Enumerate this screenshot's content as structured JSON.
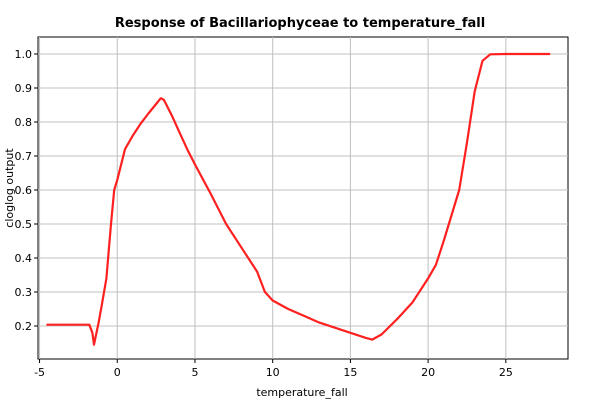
{
  "chart_data": {
    "type": "line",
    "title": "Response of Bacillariophyceae to temperature_fall",
    "xlabel": "temperature_fall",
    "ylabel": "cloglog output",
    "xlim": [
      -5.1,
      29.0
    ],
    "ylim": [
      0.103,
      1.05
    ],
    "xticks": [
      -5,
      0,
      5,
      10,
      15,
      20,
      25
    ],
    "yticks": [
      0.2,
      0.3,
      0.4,
      0.5,
      0.6,
      0.7,
      0.8,
      0.9,
      1.0
    ],
    "xtick_labels": [
      "-5",
      "0",
      "5",
      "10",
      "15",
      "20",
      "25"
    ],
    "ytick_labels": [
      "0.2",
      "0.3",
      "0.4",
      "0.5",
      "0.6",
      "0.7",
      "0.8",
      "0.9",
      "1.0"
    ],
    "grid": true,
    "colors": {
      "series": "#ff2020",
      "grid": "#c0c0c0",
      "axis": "#000000"
    },
    "series": [
      {
        "x": [
          -4.5,
          -1.8,
          -1.6,
          -1.5,
          -1.2,
          -1.0,
          -0.7,
          -0.4,
          -0.2,
          0.0,
          0.5,
          1.0,
          1.5,
          2.0,
          2.5,
          2.8,
          3.0,
          3.5,
          4.0,
          4.5,
          5.0,
          6.0,
          7.0,
          8.0,
          9.0,
          9.5,
          10.0,
          11.0,
          12.0,
          13.0,
          14.0,
          15.0,
          16.0,
          16.4,
          17.0,
          18.0,
          19.0,
          20.0,
          20.5,
          21.0,
          22.0,
          22.5,
          23.0,
          23.5,
          24.0,
          25.0,
          26.0,
          27.8
        ],
        "y": [
          0.204,
          0.204,
          0.18,
          0.145,
          0.21,
          0.26,
          0.34,
          0.5,
          0.6,
          0.63,
          0.72,
          0.76,
          0.795,
          0.825,
          0.853,
          0.87,
          0.865,
          0.82,
          0.77,
          0.72,
          0.675,
          0.59,
          0.5,
          0.43,
          0.36,
          0.3,
          0.275,
          0.25,
          0.23,
          0.21,
          0.195,
          0.18,
          0.165,
          0.16,
          0.175,
          0.22,
          0.27,
          0.34,
          0.38,
          0.45,
          0.6,
          0.74,
          0.89,
          0.98,
          0.999,
          1.0,
          1.0,
          1.0
        ]
      }
    ]
  }
}
